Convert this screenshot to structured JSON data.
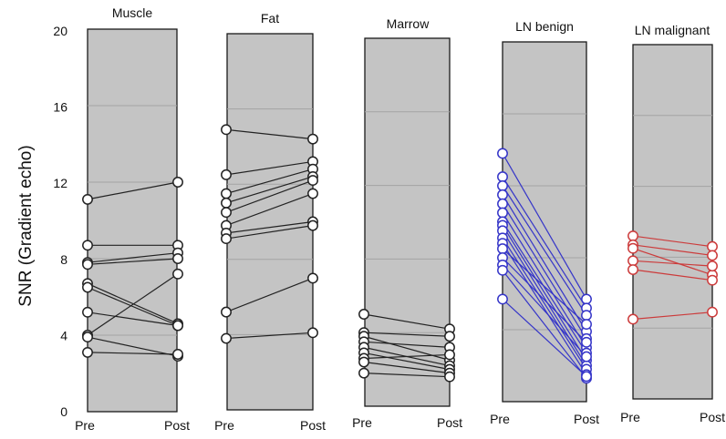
{
  "chart_data": {
    "type": "line",
    "ylabel": "SNR (Gradient echo)",
    "ylim": [
      0,
      20
    ],
    "yticks": [
      "0",
      "4",
      "8",
      "12",
      "16",
      "20"
    ],
    "grid": true,
    "panels": [
      {
        "title": "Muscle",
        "x": [
          "Pre",
          "Post"
        ],
        "color": "#222222",
        "series": [
          {
            "values": [
              11.1,
              12.0
            ]
          },
          {
            "values": [
              8.7,
              8.7
            ]
          },
          {
            "values": [
              7.8,
              8.3
            ]
          },
          {
            "values": [
              7.7,
              8.0
            ]
          },
          {
            "values": [
              6.7,
              4.6
            ]
          },
          {
            "values": [
              6.5,
              4.5
            ]
          },
          {
            "values": [
              5.2,
              4.5
            ]
          },
          {
            "values": [
              4.0,
              7.2
            ]
          },
          {
            "values": [
              3.9,
              2.9
            ]
          },
          {
            "values": [
              3.1,
              3.0
            ]
          }
        ]
      },
      {
        "title": "Fat",
        "x": [
          "Pre",
          "Post"
        ],
        "color": "#222222",
        "series": [
          {
            "values": [
              14.9,
              14.4
            ]
          },
          {
            "values": [
              12.5,
              13.2
            ]
          },
          {
            "values": [
              11.5,
              12.8
            ]
          },
          {
            "values": [
              11.0,
              12.4
            ]
          },
          {
            "values": [
              10.5,
              12.2
            ]
          },
          {
            "values": [
              9.8,
              11.5
            ]
          },
          {
            "values": [
              9.4,
              10.0
            ]
          },
          {
            "values": [
              9.1,
              9.8
            ]
          },
          {
            "values": [
              5.2,
              7.0
            ]
          },
          {
            "values": [
              3.8,
              4.1
            ]
          }
        ]
      },
      {
        "title": "Marrow",
        "x": [
          "Pre",
          "Post"
        ],
        "color": "#222222",
        "series": [
          {
            "values": [
              5.0,
              4.2
            ]
          },
          {
            "values": [
              4.0,
              3.8
            ]
          },
          {
            "values": [
              3.8,
              2.5
            ]
          },
          {
            "values": [
              3.5,
              3.2
            ]
          },
          {
            "values": [
              3.2,
              2.2
            ]
          },
          {
            "values": [
              2.9,
              2.0
            ]
          },
          {
            "values": [
              2.6,
              2.8
            ]
          },
          {
            "values": [
              2.4,
              1.8
            ]
          },
          {
            "values": [
              1.8,
              1.6
            ]
          }
        ]
      },
      {
        "title": "LN benign",
        "x": [
          "Pre",
          "Post"
        ],
        "color": "#3535c8",
        "series": [
          {
            "values": [
              13.8,
              5.7
            ]
          },
          {
            "values": [
              12.5,
              5.2
            ]
          },
          {
            "values": [
              12.0,
              4.8
            ]
          },
          {
            "values": [
              11.5,
              3.9
            ]
          },
          {
            "values": [
              11.0,
              3.5
            ]
          },
          {
            "values": [
              10.5,
              3.0
            ]
          },
          {
            "values": [
              10.0,
              2.7
            ]
          },
          {
            "values": [
              9.8,
              2.3
            ]
          },
          {
            "values": [
              9.5,
              2.0
            ]
          },
          {
            "values": [
              9.1,
              1.8
            ]
          },
          {
            "values": [
              8.8,
              1.5
            ]
          },
          {
            "values": [
              8.5,
              4.3
            ]
          },
          {
            "values": [
              8.0,
              3.3
            ]
          },
          {
            "values": [
              7.6,
              2.5
            ]
          },
          {
            "values": [
              7.3,
              1.3
            ]
          },
          {
            "values": [
              5.7,
              1.4
            ]
          }
        ]
      },
      {
        "title": "LN malignant",
        "x": [
          "Pre",
          "Post"
        ],
        "color": "#cc3b3b",
        "series": [
          {
            "values": [
              9.2,
              8.6
            ]
          },
          {
            "values": [
              8.7,
              8.1
            ]
          },
          {
            "values": [
              8.5,
              7.0
            ]
          },
          {
            "values": [
              7.8,
              7.5
            ]
          },
          {
            "values": [
              7.3,
              6.7
            ]
          },
          {
            "values": [
              4.5,
              4.9
            ]
          }
        ]
      }
    ]
  }
}
